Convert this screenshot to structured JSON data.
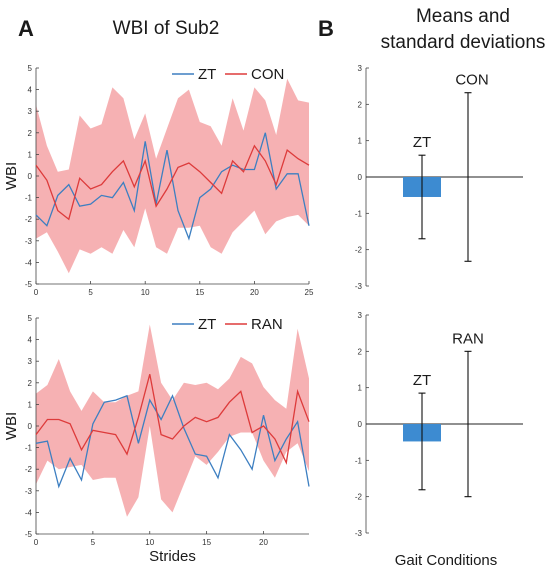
{
  "figure": {
    "panel_a_letter": "A",
    "panel_b_letter": "B",
    "panel_a_title": "WBI of Sub2",
    "panel_b_title_line1": "Means and",
    "panel_b_title_line2": "standard deviations",
    "colors": {
      "zt": "#3d7fc1",
      "con": "#dd3b3b",
      "band": "#f4a3a6",
      "bar": "#3d8bd1"
    }
  },
  "chart_data": [
    {
      "id": "top-line",
      "type": "line",
      "ylabel": "WBI",
      "xlabel": "",
      "xlim": [
        0,
        25
      ],
      "ylim": [
        -5,
        5
      ],
      "xticks": [
        0,
        5,
        10,
        15,
        20,
        25
      ],
      "yticks": [
        -5,
        -4,
        -3,
        -2,
        -1,
        0,
        1,
        2,
        3,
        4,
        5
      ],
      "legend": {
        "placement": "top-right",
        "entries": [
          "ZT",
          "CON"
        ]
      },
      "series": [
        {
          "name": "ZT",
          "x": [
            0,
            1,
            2,
            3,
            4,
            5,
            6,
            7,
            8,
            9,
            10,
            11,
            12,
            13,
            14,
            15,
            16,
            17,
            18,
            19,
            20,
            21,
            22,
            23,
            24,
            25
          ],
          "values": [
            -1.8,
            -2.3,
            -0.9,
            -0.4,
            -1.4,
            -1.3,
            -0.9,
            -1.0,
            -0.3,
            -1.6,
            1.6,
            -1.3,
            1.2,
            -1.6,
            -2.9,
            -1.0,
            -0.6,
            0.2,
            0.5,
            0.3,
            0.3,
            2.0,
            -0.6,
            0.1,
            0.1,
            -2.3
          ]
        },
        {
          "name": "CON",
          "x": [
            0,
            1,
            2,
            3,
            4,
            5,
            6,
            7,
            8,
            9,
            10,
            11,
            12,
            13,
            14,
            15,
            16,
            17,
            18,
            19,
            20,
            21,
            22,
            23,
            24,
            25
          ],
          "values": [
            0.5,
            -0.2,
            -1.6,
            -2.0,
            -0.1,
            -0.6,
            -0.4,
            0.2,
            0.7,
            -0.5,
            0.7,
            -1.4,
            -0.6,
            0.4,
            0.6,
            0.2,
            -0.3,
            -0.8,
            0.7,
            0.2,
            1.4,
            0.7,
            -0.4,
            1.2,
            0.8,
            0.5
          ]
        },
        {
          "name": "CON-band",
          "x": [
            0,
            1,
            2,
            3,
            4,
            5,
            6,
            7,
            8,
            9,
            10,
            11,
            12,
            13,
            14,
            15,
            16,
            17,
            18,
            19,
            20,
            21,
            22,
            23,
            24,
            25
          ],
          "upper": [
            3.3,
            1.4,
            0.2,
            0.3,
            2.8,
            2.2,
            2.4,
            4.1,
            3.6,
            1.7,
            2.9,
            0.8,
            2.2,
            3.6,
            4.0,
            2.5,
            2.3,
            1.4,
            3.6,
            2.1,
            4.1,
            3.5,
            1.9,
            4.5,
            3.5,
            3.4
          ],
          "lower": [
            -2.9,
            -2.6,
            -3.5,
            -4.5,
            -3.4,
            -3.6,
            -3.3,
            -3.6,
            -2.5,
            -3.3,
            -1.5,
            -3.3,
            -3.6,
            -2.4,
            -2.4,
            -2.3,
            -3.3,
            -3.6,
            -2.6,
            -2.1,
            -1.6,
            -2.7,
            -2.1,
            -1.9,
            -1.8,
            -2.3
          ]
        }
      ]
    },
    {
      "id": "bottom-line",
      "type": "line",
      "ylabel": "WBI",
      "xlabel": "Strides",
      "xlim": [
        0,
        24
      ],
      "ylim": [
        -5,
        5
      ],
      "xticks": [
        0,
        5,
        10,
        15,
        20
      ],
      "yticks": [
        -5,
        -4,
        -3,
        -2,
        -1,
        0,
        1,
        2,
        3,
        4,
        5
      ],
      "legend": {
        "placement": "top-right",
        "entries": [
          "ZT",
          "RAN"
        ]
      },
      "series": [
        {
          "name": "ZT",
          "x": [
            0,
            1,
            2,
            3,
            4,
            5,
            6,
            7,
            8,
            9,
            10,
            11,
            12,
            13,
            14,
            15,
            16,
            17,
            18,
            19,
            20,
            21,
            22,
            23,
            24
          ],
          "values": [
            -0.8,
            -0.7,
            -2.8,
            -1.5,
            -2.5,
            0.1,
            1.1,
            1.2,
            1.4,
            -0.8,
            1.2,
            0.3,
            1.4,
            -0.1,
            -1.3,
            -1.4,
            -2.4,
            -0.4,
            -1.1,
            -2.0,
            0.5,
            -1.6,
            -0.6,
            0.2,
            -2.8
          ]
        },
        {
          "name": "RAN",
          "x": [
            0,
            1,
            2,
            3,
            4,
            5,
            6,
            7,
            8,
            9,
            10,
            11,
            12,
            13,
            14,
            15,
            16,
            17,
            18,
            19,
            20,
            21,
            22,
            23,
            24
          ],
          "values": [
            -0.4,
            0.3,
            0.3,
            0.1,
            -1.1,
            -0.2,
            -0.3,
            -0.4,
            -1.3,
            0.4,
            2.4,
            -0.4,
            -0.6,
            0.0,
            0.4,
            0.2,
            0.4,
            1.1,
            1.6,
            -0.3,
            0.0,
            -0.6,
            -1.7,
            1.6,
            0.2
          ]
        },
        {
          "name": "RAN-band",
          "x": [
            0,
            1,
            2,
            3,
            4,
            5,
            6,
            7,
            8,
            9,
            10,
            11,
            12,
            13,
            14,
            15,
            16,
            17,
            18,
            19,
            20,
            21,
            22,
            23,
            24
          ],
          "upper": [
            1.5,
            1.9,
            3.1,
            1.6,
            0.7,
            1.6,
            1.1,
            1.1,
            1.4,
            1.6,
            4.7,
            2.0,
            1.2,
            2.0,
            1.9,
            2.0,
            1.7,
            2.2,
            3.2,
            2.9,
            1.8,
            1.2,
            0.8,
            4.5,
            2.2
          ],
          "lower": [
            -2.7,
            -1.6,
            -2.0,
            -1.9,
            -1.8,
            -2.5,
            -2.4,
            -2.4,
            -4.2,
            -3.3,
            0.0,
            -3.4,
            -4.0,
            -2.7,
            -1.4,
            -1.8,
            -1.2,
            -0.5,
            -0.3,
            -0.3,
            -1.6,
            -2.4,
            -1.2,
            -0.8,
            -2.1
          ]
        }
      ]
    },
    {
      "id": "top-bar",
      "type": "bar",
      "ylim": [
        -3,
        3
      ],
      "yticks": [
        -3,
        -2,
        -1,
        0,
        1,
        2,
        3
      ],
      "categories": [
        "ZT",
        "CON"
      ],
      "values": [
        -0.55,
        0.0
      ],
      "errors": [
        1.15,
        2.32
      ]
    },
    {
      "id": "bottom-bar",
      "type": "bar",
      "ylim": [
        -3,
        3
      ],
      "yticks": [
        -3,
        -2,
        -1,
        0,
        1,
        2,
        3
      ],
      "xlabel": "Gait Conditions",
      "categories": [
        "ZT",
        "RAN"
      ],
      "values": [
        -0.48,
        0.0
      ],
      "errors": [
        1.33,
        2.0
      ]
    }
  ]
}
